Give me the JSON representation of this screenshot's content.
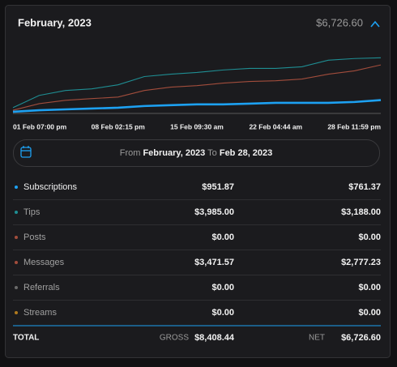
{
  "header": {
    "title": "February, 2023",
    "total": "$6,726.60"
  },
  "chart_data": {
    "type": "line",
    "categories": [
      "01 Feb 07:00 pm",
      null,
      null,
      null,
      "08 Feb 02:15 pm",
      null,
      null,
      "15 Feb 09:30 am",
      null,
      null,
      "22 Feb 04:44 am",
      null,
      null,
      null,
      "28 Feb 11:59 pm"
    ],
    "ylim": [
      0,
      5800
    ],
    "series": [
      {
        "name": "Posts",
        "color": "#5a5a5a",
        "values": [
          0,
          0,
          0,
          0,
          0,
          0,
          0,
          0,
          0,
          0,
          0,
          0,
          0,
          0,
          0
        ]
      },
      {
        "name": "Messages",
        "color": "#a24d3c",
        "values": [
          230,
          700,
          940,
          1060,
          1170,
          1640,
          1880,
          1990,
          2170,
          2290,
          2340,
          2460,
          2810,
          3050,
          3472
        ]
      },
      {
        "name": "Tips",
        "color": "#1f8e93",
        "values": [
          410,
          1290,
          1640,
          1760,
          2050,
          2640,
          2810,
          2930,
          3110,
          3220,
          3220,
          3340,
          3810,
          3930,
          3985
        ]
      },
      {
        "name": "Subscriptions",
        "color": "#1da1f2",
        "values": [
          120,
          230,
          290,
          350,
          410,
          530,
          590,
          650,
          650,
          700,
          760,
          760,
          760,
          820,
          952
        ]
      }
    ]
  },
  "date_range": {
    "from_label": "From",
    "from": "February, 2023",
    "to_label": "To",
    "to": "Feb 28, 2023"
  },
  "table": {
    "rows": [
      {
        "name": "Subscriptions",
        "color": "#1da1f2",
        "gross": "$951.87",
        "net": "$761.37"
      },
      {
        "name": "Tips",
        "color": "#1f8e93",
        "gross": "$3,985.00",
        "net": "$3,188.00"
      },
      {
        "name": "Posts",
        "color": "#a24d3c",
        "gross": "$0.00",
        "net": "$0.00"
      },
      {
        "name": "Messages",
        "color": "#a24d3c",
        "gross": "$3,471.57",
        "net": "$2,777.23"
      },
      {
        "name": "Referrals",
        "color": "#6a6a6a",
        "gross": "$0.00",
        "net": "$0.00"
      },
      {
        "name": "Streams",
        "color": "#b07a1e",
        "gross": "$0.00",
        "net": "$0.00"
      }
    ],
    "total": {
      "label": "TOTAL",
      "gross_label": "GROSS",
      "gross": "$8,408.44",
      "net_label": "NET",
      "net": "$6,726.60"
    }
  }
}
